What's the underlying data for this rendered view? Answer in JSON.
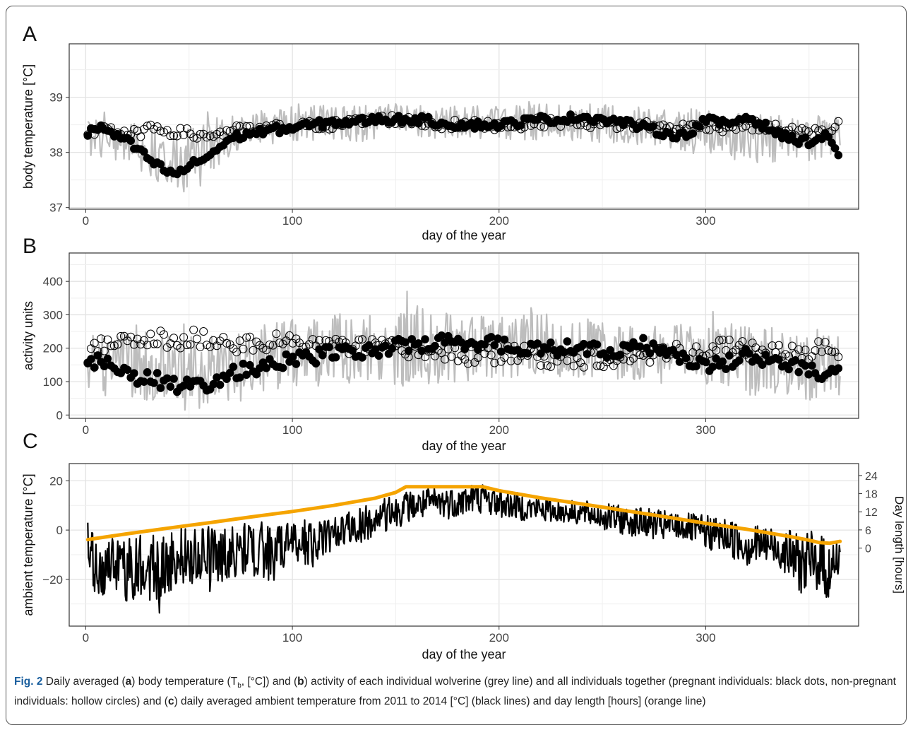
{
  "figure": {
    "caption": {
      "fig_label": "Fig. 2",
      "t1": "Daily averaged (",
      "a": "a",
      "t2": ") body temperature (T",
      "sub": "b",
      "t3": ", [°C]) and (",
      "b": "b",
      "t4": ") activity of each individual wolverine (grey line) and all individuals together (pregnant individuals: black dots, non-pregnant individuals: hollow circles) and (",
      "c": "c",
      "t5": ") daily averaged ambient temperature from 2011 to 2014 [°C] (black lines) and day length [hours] (orange line)"
    }
  },
  "chart_data": [
    {
      "panel": "A",
      "type": "scatter",
      "title": "",
      "xlabel": "day of the year",
      "ylabel": "body temperature [°C]",
      "xlim": [
        -8,
        374
      ],
      "ylim": [
        36.97,
        39.97
      ],
      "xticks": [
        0,
        100,
        200,
        300
      ],
      "yticks": [
        37,
        38,
        39
      ],
      "grid": true,
      "colors": {
        "individual": "#bdbdbd",
        "points": "#000000"
      },
      "series": [
        {
          "kind": "line",
          "x": [
            1,
            10,
            20,
            30,
            40,
            45,
            50,
            55,
            60,
            65,
            70,
            80,
            90,
            100,
            120,
            140,
            160,
            180,
            200,
            220,
            240,
            260,
            280,
            300,
            320,
            340,
            360,
            365
          ],
          "y_low": [
            37.9,
            37.9,
            37.8,
            37.6,
            37.35,
            37.2,
            37.25,
            37.3,
            37.5,
            37.6,
            38.0,
            38.1,
            38.15,
            38.2,
            38.2,
            38.2,
            38.25,
            38.25,
            38.25,
            38.2,
            38.2,
            38.15,
            38.05,
            37.95,
            37.8,
            37.8,
            37.8,
            37.9
          ],
          "y_high": [
            38.8,
            38.8,
            38.7,
            38.6,
            38.6,
            38.6,
            38.65,
            38.7,
            38.75,
            38.85,
            38.8,
            38.85,
            38.9,
            38.95,
            39.0,
            39.0,
            39.0,
            38.95,
            38.95,
            39.0,
            39.0,
            39.0,
            38.9,
            38.95,
            38.9,
            38.85,
            38.8,
            38.8
          ]
        },
        {
          "kind": "filled",
          "x": [
            1,
            5,
            10,
            15,
            20,
            25,
            30,
            35,
            40,
            43,
            46,
            50,
            55,
            60,
            65,
            70,
            80,
            90,
            100,
            110,
            120,
            130,
            140,
            150,
            160,
            170,
            180,
            190,
            200,
            210,
            220,
            230,
            240,
            250,
            260,
            270,
            280,
            290,
            300,
            310,
            320,
            330,
            340,
            350,
            360,
            365
          ],
          "y": [
            38.35,
            38.45,
            38.4,
            38.3,
            38.2,
            38.05,
            37.9,
            37.75,
            37.65,
            37.6,
            37.65,
            37.75,
            37.85,
            37.95,
            38.1,
            38.25,
            38.35,
            38.4,
            38.45,
            38.5,
            38.55,
            38.55,
            38.6,
            38.6,
            38.6,
            38.55,
            38.5,
            38.5,
            38.5,
            38.55,
            38.6,
            38.6,
            38.65,
            38.6,
            38.55,
            38.45,
            38.35,
            38.3,
            38.6,
            38.5,
            38.65,
            38.45,
            38.25,
            38.2,
            38.3,
            37.9
          ]
        },
        {
          "kind": "hollow",
          "x": [
            1,
            5,
            10,
            15,
            20,
            25,
            30,
            35,
            40,
            45,
            50,
            55,
            60,
            65,
            70,
            80,
            90,
            100,
            110,
            120,
            130,
            140,
            150,
            160,
            170,
            180,
            190,
            200,
            210,
            220,
            230,
            240,
            250,
            260,
            270,
            280,
            290,
            300,
            310,
            320,
            330,
            340,
            350,
            360,
            365
          ],
          "y": [
            38.35,
            38.4,
            38.5,
            38.35,
            38.3,
            38.35,
            38.4,
            38.45,
            38.4,
            38.35,
            38.35,
            38.3,
            38.3,
            38.35,
            38.4,
            38.4,
            38.45,
            38.45,
            38.5,
            38.5,
            38.55,
            38.6,
            38.6,
            38.55,
            38.5,
            38.5,
            38.5,
            38.5,
            38.5,
            38.55,
            38.55,
            38.55,
            38.5,
            38.5,
            38.5,
            38.45,
            38.45,
            38.5,
            38.45,
            38.5,
            38.45,
            38.4,
            38.35,
            38.4,
            38.55
          ]
        }
      ]
    },
    {
      "panel": "B",
      "type": "scatter",
      "title": "",
      "xlabel": "day of the year",
      "ylabel": "activity units",
      "xlim": [
        -8,
        374
      ],
      "ylim": [
        -10,
        485
      ],
      "xticks": [
        0,
        100,
        200,
        300
      ],
      "yticks": [
        0,
        100,
        200,
        300,
        400
      ],
      "grid": true,
      "colors": {
        "individual": "#bdbdbd",
        "points": "#000000"
      },
      "series": [
        {
          "kind": "line",
          "x": [
            1,
            20,
            40,
            50,
            60,
            70,
            80,
            100,
            120,
            140,
            160,
            180,
            200,
            220,
            240,
            260,
            280,
            300,
            320,
            340,
            360,
            365
          ],
          "y_low": [
            60,
            50,
            30,
            10,
            10,
            20,
            50,
            80,
            90,
            100,
            80,
            100,
            110,
            110,
            110,
            100,
            90,
            80,
            60,
            50,
            40,
            60
          ],
          "y_high": [
            290,
            280,
            300,
            280,
            260,
            280,
            300,
            340,
            340,
            350,
            380,
            330,
            330,
            340,
            320,
            310,
            300,
            320,
            300,
            290,
            300,
            280
          ]
        },
        {
          "kind": "filled",
          "x": [
            1,
            5,
            10,
            15,
            20,
            25,
            30,
            35,
            40,
            45,
            50,
            55,
            60,
            65,
            70,
            80,
            90,
            100,
            110,
            120,
            130,
            140,
            150,
            160,
            170,
            180,
            190,
            200,
            210,
            220,
            230,
            240,
            250,
            260,
            270,
            280,
            290,
            300,
            310,
            320,
            330,
            340,
            350,
            360,
            365
          ],
          "y": [
            150,
            160,
            165,
            140,
            125,
            115,
            110,
            105,
            95,
            80,
            85,
            90,
            95,
            110,
            120,
            140,
            150,
            170,
            175,
            185,
            190,
            195,
            205,
            210,
            215,
            220,
            215,
            210,
            205,
            200,
            200,
            195,
            190,
            200,
            210,
            190,
            170,
            140,
            160,
            180,
            170,
            150,
            130,
            110,
            140
          ]
        },
        {
          "kind": "hollow",
          "x": [
            1,
            5,
            10,
            15,
            20,
            25,
            30,
            35,
            40,
            45,
            50,
            55,
            60,
            65,
            70,
            80,
            90,
            100,
            110,
            120,
            130,
            140,
            150,
            160,
            170,
            180,
            190,
            200,
            210,
            220,
            230,
            240,
            250,
            260,
            270,
            280,
            290,
            300,
            310,
            320,
            330,
            340,
            350,
            360,
            365
          ],
          "y": [
            140,
            220,
            200,
            210,
            215,
            220,
            225,
            230,
            215,
            220,
            225,
            230,
            230,
            220,
            215,
            210,
            215,
            220,
            210,
            210,
            200,
            200,
            200,
            190,
            185,
            180,
            180,
            180,
            180,
            175,
            170,
            170,
            170,
            175,
            180,
            190,
            190,
            200,
            200,
            195,
            190,
            185,
            190,
            195,
            185
          ]
        }
      ]
    },
    {
      "panel": "C",
      "type": "line",
      "title": "",
      "xlabel": "day of the year",
      "ylabel": "ambient temperature [°C]",
      "ylabel_right": "Day length [hours]",
      "xlim": [
        -8,
        374
      ],
      "ylim": [
        -39,
        27
      ],
      "y2lim": [
        -25.83,
        27.95
      ],
      "xticks": [
        0,
        100,
        200,
        300
      ],
      "yticks": [
        -20,
        0,
        20
      ],
      "y2ticks": [
        0,
        6,
        12,
        18,
        24
      ],
      "grid": true,
      "colors": {
        "ambient": "#000000",
        "day_length": "#f5a400"
      },
      "series": [
        {
          "name": "",
          "kind": "band",
          "x": [
            1,
            5,
            10,
            15,
            20,
            25,
            30,
            35,
            40,
            50,
            60,
            70,
            80,
            90,
            100,
            110,
            120,
            130,
            140,
            150,
            155,
            160,
            170,
            180,
            190,
            200,
            210,
            220,
            230,
            240,
            250,
            260,
            270,
            280,
            290,
            300,
            310,
            320,
            330,
            340,
            345,
            350,
            355,
            360,
            365
          ],
          "y_low": [
            -20,
            -30,
            -28,
            -26,
            -30,
            -28,
            -28,
            -35,
            -25,
            -22,
            -25,
            -20,
            -18,
            -22,
            -12,
            -15,
            -8,
            -6,
            -4,
            0,
            3,
            4,
            4,
            5,
            7,
            5,
            4,
            3,
            3,
            2,
            0,
            -2,
            -3,
            -5,
            -4,
            -8,
            -10,
            -15,
            -14,
            -18,
            -25,
            -28,
            -24,
            -32,
            -15
          ],
          "y_high": [
            3,
            -4,
            -2,
            -4,
            -3,
            -1,
            0,
            -1,
            -1,
            2,
            3,
            2,
            4,
            3,
            4,
            5,
            6,
            8,
            12,
            14,
            16,
            16,
            18,
            18,
            20,
            17,
            15,
            14,
            12,
            12,
            11,
            10,
            9,
            8,
            7,
            6,
            5,
            3,
            2,
            0,
            -1,
            0,
            -1,
            -3,
            -4
          ]
        },
        {
          "name": "",
          "kind": "line",
          "axis": "right",
          "x": [
            1,
            20,
            40,
            60,
            80,
            100,
            120,
            140,
            150,
            155,
            160,
            170,
            180,
            190,
            192,
            200,
            220,
            240,
            260,
            280,
            300,
            320,
            340,
            350,
            355,
            360,
            365
          ],
          "y": [
            2.8,
            4.7,
            6.6,
            8.4,
            10.3,
            12.1,
            14.1,
            16.5,
            18.4,
            20.3,
            20.3,
            20.3,
            20.3,
            20.3,
            20.3,
            19.0,
            16.6,
            14.6,
            12.5,
            10.4,
            8.2,
            6.2,
            3.9,
            2.6,
            1.8,
            1.6,
            2.2
          ]
        }
      ]
    }
  ],
  "panel_labels": [
    "A",
    "B",
    "C"
  ]
}
